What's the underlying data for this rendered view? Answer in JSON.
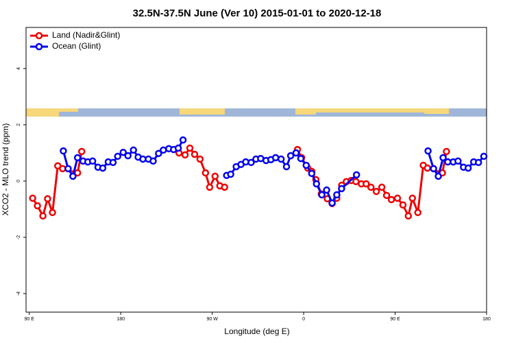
{
  "chart_data": {
    "type": "line",
    "title": "32.5N-37.5N June (Ver 10)   2015-01-01 to 2020-12-18",
    "x_label": "Longitude (deg E)",
    "y_label": "XCO2 - MLO trend (ppm)",
    "xlim": [
      86.8,
      540
    ],
    "ylim": [
      -4.66,
      5.46
    ],
    "xticks": [
      {
        "value": 90,
        "label": "90 E"
      },
      {
        "value": 180,
        "label": "180"
      },
      {
        "value": 270,
        "label": "90 W"
      },
      {
        "value": 360,
        "label": "0"
      },
      {
        "value": 450,
        "label": "90 E"
      },
      {
        "value": 540,
        "label": "180"
      }
    ],
    "yticks": [
      -4,
      -2,
      0,
      2,
      4
    ],
    "legend": "top-left",
    "series": [
      {
        "name": "Land (Nadir&Glint)",
        "color": "#ee0000",
        "x": [
          93.3,
          98,
          103.4,
          108,
          112.8,
          118,
          122.8,
          137.5,
          141.6,
          null,
          237.3,
          243.3,
          248,
          252.7,
          258,
          263.4,
          267.5,
          272.8,
          277.5,
          282.2,
          null,
          353.9,
          358,
          364,
          368,
          372,
          377.3,
          383.3,
          388,
          392.6,
          397.4,
          402,
          406.7,
          411.4,
          416.8,
          421.5,
          426.2,
          431.5,
          436.9,
          441.6,
          446.3,
          452.3,
          457.7,
          463,
          467,
          472.4,
          477.7,
          481.8,
          496.5,
          500.5
        ],
        "values": [
          -0.61,
          -0.88,
          -1.24,
          -0.63,
          -1.12,
          0.54,
          0.44,
          0.29,
          1.05,
          null,
          1.0,
          0.93,
          1.17,
          0.95,
          0.78,
          0.29,
          -0.22,
          0.17,
          -0.17,
          -0.22,
          null,
          1.12,
          0.83,
          0.46,
          0.34,
          0.05,
          -0.46,
          -0.63,
          -0.8,
          -0.61,
          -0.15,
          -0.02,
          0.02,
          -0.02,
          -0.1,
          -0.1,
          -0.22,
          -0.37,
          -0.22,
          -0.51,
          -0.66,
          -0.61,
          -0.85,
          -1.24,
          -0.61,
          -1.12,
          0.56,
          0.46,
          0.29,
          1.05
        ]
      },
      {
        "name": "Ocean (Glint)",
        "color": "#0000ee",
        "x": [
          123.5,
          128.2,
          132.9,
          137.5,
          142.9,
          147.6,
          152.3,
          157.6,
          162.3,
          167.7,
          172.4,
          177,
          182.4,
          187.1,
          192.5,
          197.1,
          201.8,
          207.2,
          211.9,
          217.2,
          221.9,
          227.3,
          232,
          236.6,
          241.3,
          null,
          284.2,
          288.2,
          293.6,
          298.3,
          303,
          308.3,
          313,
          317.7,
          323,
          327.7,
          332.4,
          337.8,
          343.1,
          347.2,
          352.5,
          357.2,
          362.5,
          367.9,
          372.6,
          377.9,
          382.6,
          388,
          392.6,
          397.3,
          412,
          null,
          482.4,
          487.8,
          492.5,
          497.2,
          501.8,
          507.2,
          511.9,
          517.3,
          521.9,
          527.3,
          532,
          537.3
        ],
        "values": [
          1.07,
          0.44,
          0.17,
          0.83,
          0.71,
          0.68,
          0.71,
          0.49,
          0.46,
          0.68,
          0.66,
          0.88,
          1.02,
          0.9,
          1.1,
          0.85,
          0.78,
          0.78,
          0.71,
          0.98,
          1.1,
          1.15,
          1.12,
          1.17,
          1.46,
          null,
          0.2,
          0.24,
          0.51,
          0.59,
          0.68,
          0.66,
          0.78,
          0.8,
          0.73,
          0.76,
          0.83,
          0.78,
          0.51,
          0.9,
          1.0,
          0.8,
          0.56,
          0.27,
          -0.1,
          -0.49,
          -0.32,
          -0.78,
          -0.49,
          -0.27,
          0.22,
          null,
          1.07,
          0.44,
          0.17,
          0.83,
          0.68,
          0.68,
          0.71,
          0.49,
          0.46,
          0.68,
          0.66,
          0.88
        ]
      }
    ]
  }
}
